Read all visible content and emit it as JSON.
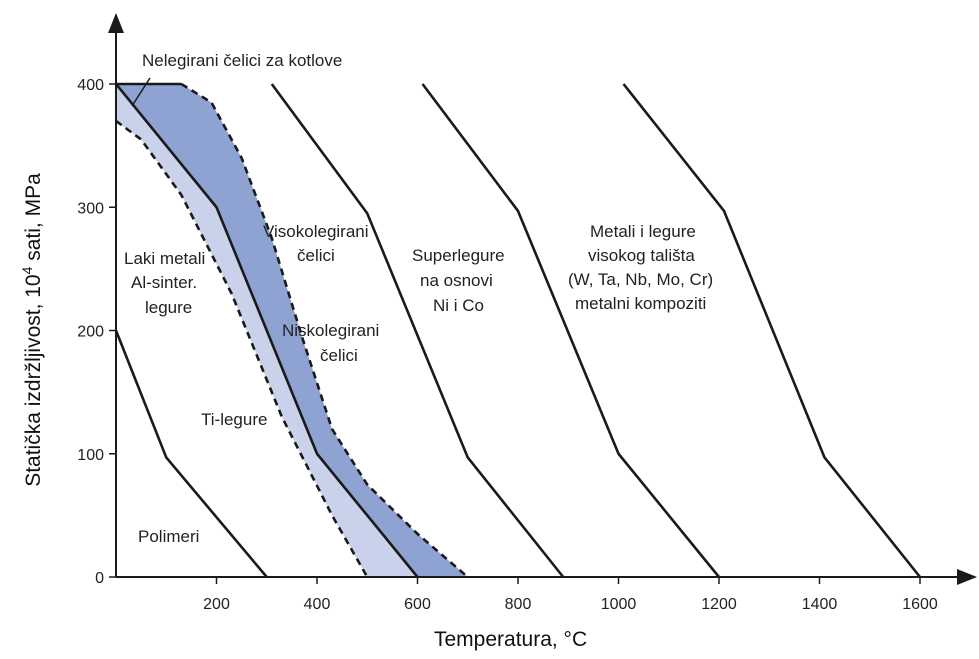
{
  "chart_data": {
    "type": "line",
    "xlabel": "Temperatura, °C",
    "ylabel_main": "Statička izdržljivost, 10",
    "ylabel_sup": "4",
    "ylabel_tail": " sati, MPa",
    "xlim": [
      0,
      1700
    ],
    "ylim": [
      0,
      400
    ],
    "x_ticks": [
      200,
      400,
      600,
      800,
      1000,
      1200,
      1400,
      1600
    ],
    "y_ticks": [
      0,
      100,
      200,
      300,
      400
    ],
    "colors": {
      "light_band": "#c9d2ea",
      "dark_band": "#8fa3d2",
      "line": "#1a1a1a"
    },
    "series": [
      {
        "key": "polimeri",
        "style": "solid",
        "x": [
          0,
          100,
          300
        ],
        "y": [
          200,
          97,
          0
        ]
      },
      {
        "key": "laki_lower",
        "style": "dashed",
        "x": [
          0,
          50,
          130,
          230,
          330,
          430,
          500
        ],
        "y": [
          370,
          355,
          310,
          230,
          130,
          50,
          0
        ]
      },
      {
        "key": "ti_legure",
        "style": "solid",
        "x": [
          0,
          200,
          400,
          600
        ],
        "y": [
          400,
          300,
          100,
          0
        ]
      },
      {
        "key": "nisko_upper",
        "style": "dashed",
        "x": [
          130,
          190,
          250,
          310,
          370,
          430,
          500,
          600,
          700
        ],
        "y": [
          400,
          385,
          340,
          275,
          195,
          120,
          75,
          35,
          0
        ]
      },
      {
        "key": "nisko_top",
        "style": "solid",
        "x": [
          0,
          130
        ],
        "y": [
          400,
          400
        ]
      },
      {
        "key": "superlegure",
        "style": "solid",
        "x": [
          310,
          500,
          700,
          890
        ],
        "y": [
          400,
          295,
          97,
          0
        ]
      },
      {
        "key": "metalni_kompoziti",
        "style": "solid",
        "x": [
          610,
          800,
          1000,
          1200
        ],
        "y": [
          400,
          297,
          100,
          0
        ]
      },
      {
        "key": "visoko_taliste",
        "style": "solid",
        "x": [
          1010,
          1210,
          1410,
          1600
        ],
        "y": [
          400,
          297,
          97,
          0
        ]
      }
    ],
    "bands": [
      {
        "key": "light",
        "lower_series": "laki_lower",
        "upper_series": "ti_legure"
      },
      {
        "key": "dark",
        "lower_series": "ti_legure",
        "upper_series": "nisko_upper"
      }
    ],
    "annotations": {
      "nelegirani": "Nelegirani čelici za kotlove",
      "laki_1": "Laki metali",
      "laki_2": "Al-sinter.",
      "laki_3": "legure",
      "visoko_1": "Visokolegirani",
      "visoko_2": "čelici",
      "nisko_1": "Niskolegirani",
      "nisko_2": "čelici",
      "ti": "Ti-legure",
      "polimeri": "Polimeri",
      "super_1": "Superlegure",
      "super_2": "na osnovi",
      "super_3": "Ni i Co",
      "metali_1": "Metali i legure",
      "metali_2": "visokog tališta",
      "metali_3": "(W, Ta, Nb, Mo, Cr)",
      "metali_4": "metalni kompoziti"
    }
  }
}
